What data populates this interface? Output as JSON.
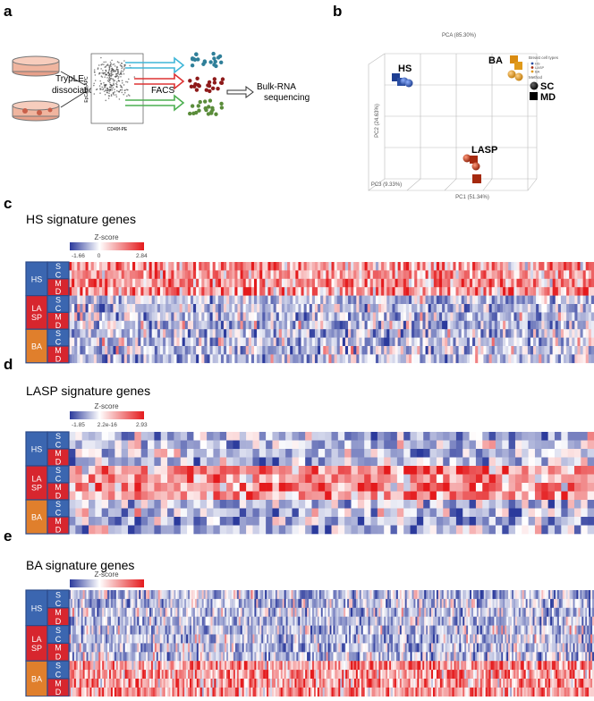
{
  "panel_a": {
    "label": "a",
    "step_lines": [
      "TrypLE",
      "dissociation"
    ],
    "facs_y_axis": "EpCAM-APC",
    "facs_x_axis": "CD49f-PE",
    "facs": "FACS",
    "output_lines": [
      "Bulk-RNA",
      "sequencing"
    ]
  },
  "panel_b": {
    "label": "b",
    "title": "PCA (85.30%)",
    "legend_types_title": "Breast cell types",
    "types": [
      "HS",
      "LASP",
      "BA"
    ],
    "legend_method_title": "Method",
    "methods": [
      "SC",
      "MD"
    ],
    "x_axis": "PC1 (51.34%)",
    "y_axis": "PC2 (24.63%)",
    "z_axis": "PC3 (9.33%)",
    "cluster_labels": [
      "HS",
      "BA",
      "LASP"
    ]
  },
  "heatmaps": [
    {
      "label": "c",
      "title": "HS signature genes",
      "scale_title": "Z-score",
      "scale_ticks": [
        "-1.66",
        "0",
        "2.84"
      ]
    },
    {
      "label": "d",
      "title": "LASP signature genes",
      "scale_title": "Z-score",
      "scale_ticks": [
        "-1.85",
        "2.2e-16",
        "2.93"
      ]
    },
    {
      "label": "e",
      "title": "BA signature genes",
      "scale_title": "Z-score",
      "scale_ticks": []
    }
  ],
  "row_groups": [
    [
      "HS"
    ],
    [
      "LA",
      "SP"
    ],
    [
      "BA"
    ]
  ],
  "row_letters": [
    "S",
    "C",
    "M",
    "D"
  ]
}
